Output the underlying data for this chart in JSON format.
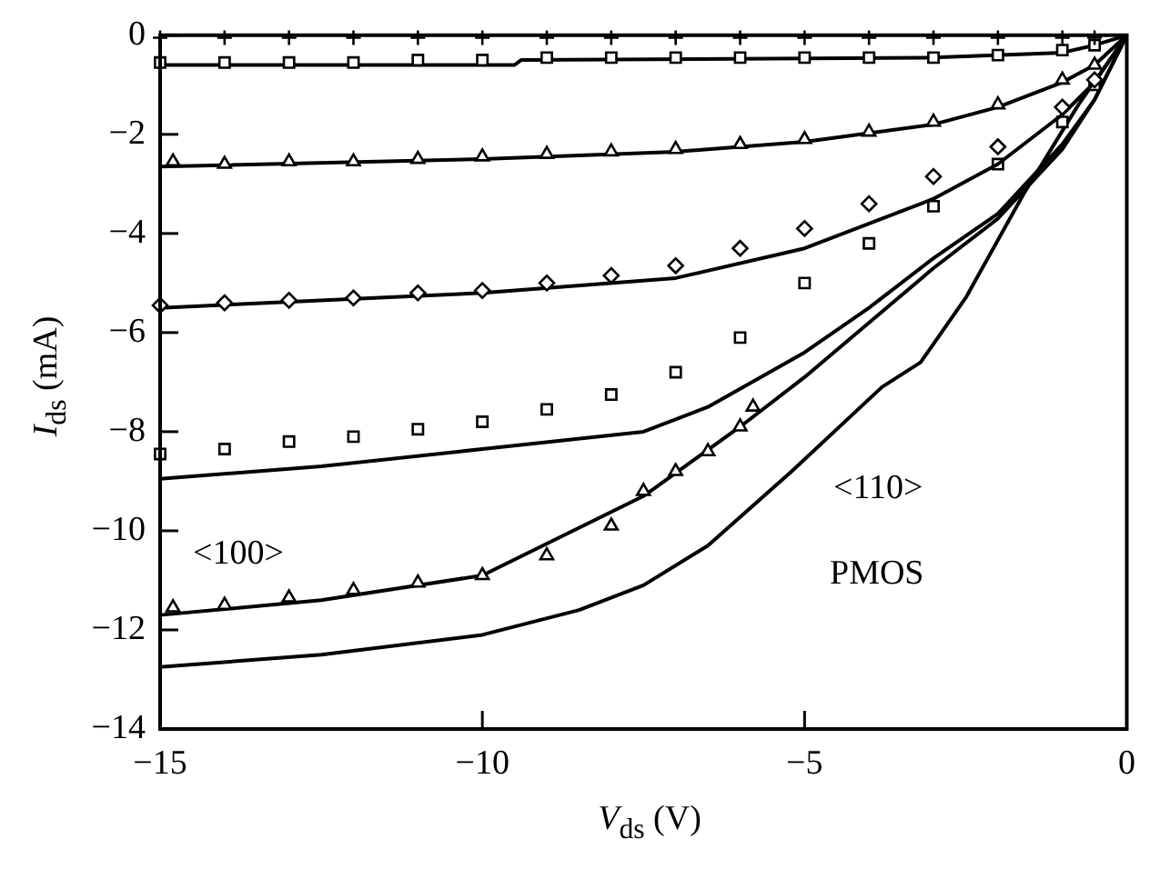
{
  "chart_data": {
    "type": "line",
    "xlabel": "V$_{ds}$ (V)",
    "ylabel": "I$_{ds}$ (mA)",
    "xlim": [
      -15,
      0
    ],
    "ylim": [
      -14,
      0
    ],
    "xticks": [
      -15,
      -10,
      -5,
      0
    ],
    "yticks": [
      0,
      -2,
      -4,
      -6,
      -8,
      -10,
      -12,
      -14
    ],
    "series": [
      {
        "type": "scatter",
        "marker": "cross",
        "color": "#000000",
        "x": [
          -15,
          -14,
          -13,
          -12,
          -11,
          -10,
          -9,
          -8,
          -7,
          -6,
          -5,
          -4,
          -3,
          -2,
          -1,
          -0.5
        ],
        "values": [
          -0.05,
          -0.05,
          -0.05,
          -0.05,
          -0.05,
          -0.05,
          -0.05,
          -0.05,
          -0.05,
          -0.05,
          -0.05,
          -0.05,
          -0.05,
          -0.05,
          -0.05,
          -0.05
        ]
      },
      {
        "type": "scatter",
        "marker": "square",
        "color": "#000000",
        "x": [
          -15,
          -14,
          -13,
          -12,
          -11,
          -10,
          -9,
          -8,
          -7,
          -6,
          -5,
          -4,
          -3,
          -2,
          -1,
          -0.5
        ],
        "values": [
          -0.55,
          -0.55,
          -0.55,
          -0.55,
          -0.5,
          -0.5,
          -0.45,
          -0.45,
          -0.45,
          -0.45,
          -0.45,
          -0.45,
          -0.45,
          -0.4,
          -0.3,
          -0.2
        ]
      },
      {
        "marker": "none",
        "line_style": "solid",
        "color": "#000000",
        "x": [
          -15,
          -9.5,
          -9.4,
          -3,
          -1,
          -0.5,
          0
        ],
        "values": [
          -0.6,
          -0.6,
          -0.5,
          -0.45,
          -0.35,
          -0.2,
          0
        ]
      },
      {
        "type": "scatter",
        "marker": "triangle",
        "color": "#000000",
        "x": [
          -14.8,
          -14,
          -13,
          -12,
          -11,
          -10,
          -9,
          -8,
          -7,
          -6,
          -5,
          -4,
          -3,
          -2,
          -1,
          -0.5
        ],
        "values": [
          -2.55,
          -2.6,
          -2.55,
          -2.55,
          -2.5,
          -2.45,
          -2.4,
          -2.35,
          -2.3,
          -2.2,
          -2.1,
          -1.95,
          -1.75,
          -1.4,
          -0.9,
          -0.6
        ]
      },
      {
        "marker": "none",
        "line_style": "solid",
        "color": "#000000",
        "x": [
          -15,
          -10,
          -7,
          -5,
          -3,
          -2,
          -1,
          -0.5,
          0
        ],
        "values": [
          -2.65,
          -2.5,
          -2.35,
          -2.15,
          -1.8,
          -1.45,
          -0.95,
          -0.6,
          0
        ]
      },
      {
        "type": "scatter",
        "marker": "diamond",
        "color": "#000000",
        "x": [
          -15,
          -14,
          -13,
          -12,
          -11,
          -10,
          -9,
          -8,
          -7,
          -6,
          -5,
          -4,
          -3,
          -2,
          -1,
          -0.5
        ],
        "values": [
          -5.45,
          -5.4,
          -5.35,
          -5.3,
          -5.2,
          -5.15,
          -5.0,
          -4.85,
          -4.65,
          -4.3,
          -3.9,
          -3.4,
          -2.85,
          -2.25,
          -1.45,
          -0.9
        ]
      },
      {
        "marker": "none",
        "line_style": "solid",
        "color": "#000000",
        "x": [
          -15,
          -10,
          -7,
          -5,
          -3,
          -2,
          -1,
          -0.5,
          0
        ],
        "values": [
          -5.5,
          -5.2,
          -4.9,
          -4.3,
          -3.3,
          -2.6,
          -1.6,
          -0.95,
          0
        ]
      },
      {
        "type": "scatter",
        "marker": "square",
        "color": "#000000",
        "x": [
          -15,
          -14,
          -13,
          -12,
          -11,
          -10,
          -9,
          -8,
          -7,
          -6,
          -5,
          -4,
          -3,
          -2,
          -1,
          -0.5
        ],
        "values": [
          -8.45,
          -8.35,
          -8.2,
          -8.1,
          -7.95,
          -7.8,
          -7.55,
          -7.25,
          -6.8,
          -6.1,
          -5.0,
          -4.2,
          -3.45,
          -2.6,
          -1.75,
          -1.0
        ]
      },
      {
        "marker": "none",
        "line_style": "solid",
        "color": "#000000",
        "x": [
          -15,
          -12.5,
          -10,
          -7.5,
          -6.5,
          -5,
          -4,
          -3,
          -2,
          -1,
          -0.5,
          0
        ],
        "values": [
          -8.95,
          -8.7,
          -8.35,
          -8.0,
          -7.5,
          -6.4,
          -5.5,
          -4.5,
          -3.6,
          -2.2,
          -1.3,
          0
        ]
      },
      {
        "type": "scatter",
        "marker": "triangle",
        "color": "#000000",
        "x": [
          -14.8,
          -14,
          -13,
          -12,
          -11,
          -10,
          -9,
          -8,
          -7.5,
          -7,
          -6.5,
          -6,
          -5.8
        ],
        "values": [
          -11.55,
          -11.5,
          -11.35,
          -11.2,
          -11.05,
          -10.9,
          -10.5,
          -9.9,
          -9.2,
          -8.8,
          -8.4,
          -7.9,
          -7.5
        ]
      },
      {
        "marker": "none",
        "line_style": "solid",
        "color": "#000000",
        "x": [
          -15,
          -12.5,
          -10,
          -7.5,
          -6,
          -5,
          -4,
          -3,
          -2,
          -1,
          -0.5,
          0
        ],
        "values": [
          -11.7,
          -11.4,
          -10.9,
          -9.3,
          -7.9,
          -6.9,
          -5.8,
          -4.7,
          -3.7,
          -2.3,
          -1.3,
          0
        ]
      },
      {
        "marker": "none",
        "line_style": "solid",
        "color": "#000000",
        "x": [
          -15,
          -12.5,
          -10,
          -8.5,
          -7.5,
          -6.5,
          -5.2,
          -3.8,
          -3.2,
          -2.5,
          -1.6,
          -0.75,
          0
        ],
        "values": [
          -12.75,
          -12.5,
          -12.1,
          -11.6,
          -11.1,
          -10.3,
          -8.8,
          -7.1,
          -6.6,
          -5.3,
          -3.2,
          -1.4,
          0
        ]
      }
    ],
    "annotations": [
      "<100>",
      "<110>",
      "PMOS"
    ]
  }
}
